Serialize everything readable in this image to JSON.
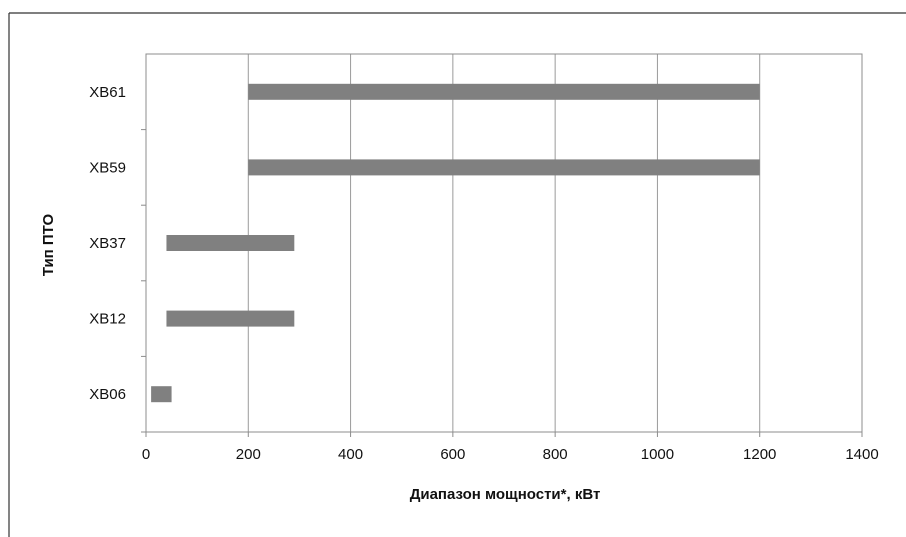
{
  "chart_data": {
    "type": "bar",
    "orientation": "horizontal",
    "style": "floating-range",
    "title": "",
    "xlabel": "Диапазон мощности*, кВт",
    "ylabel": "Тип ПТО",
    "categories": [
      "XB06",
      "XB12",
      "XB37",
      "XB59",
      "XB61"
    ],
    "ranges": [
      {
        "category": "XB06",
        "min": 10,
        "max": 50
      },
      {
        "category": "XB12",
        "min": 40,
        "max": 290
      },
      {
        "category": "XB37",
        "min": 40,
        "max": 290
      },
      {
        "category": "XB59",
        "min": 200,
        "max": 1200
      },
      {
        "category": "XB61",
        "min": 200,
        "max": 1200
      }
    ],
    "xlim": [
      0,
      1400
    ],
    "xticks": [
      "0",
      "200",
      "400",
      "600",
      "800",
      "1000",
      "1200",
      "1400"
    ],
    "grid": "vertical",
    "legend": "none",
    "colors": {
      "bar": "#808080",
      "grid": "#9a9a9a",
      "axis": "#8c8c8c",
      "frame": "#333333"
    }
  }
}
